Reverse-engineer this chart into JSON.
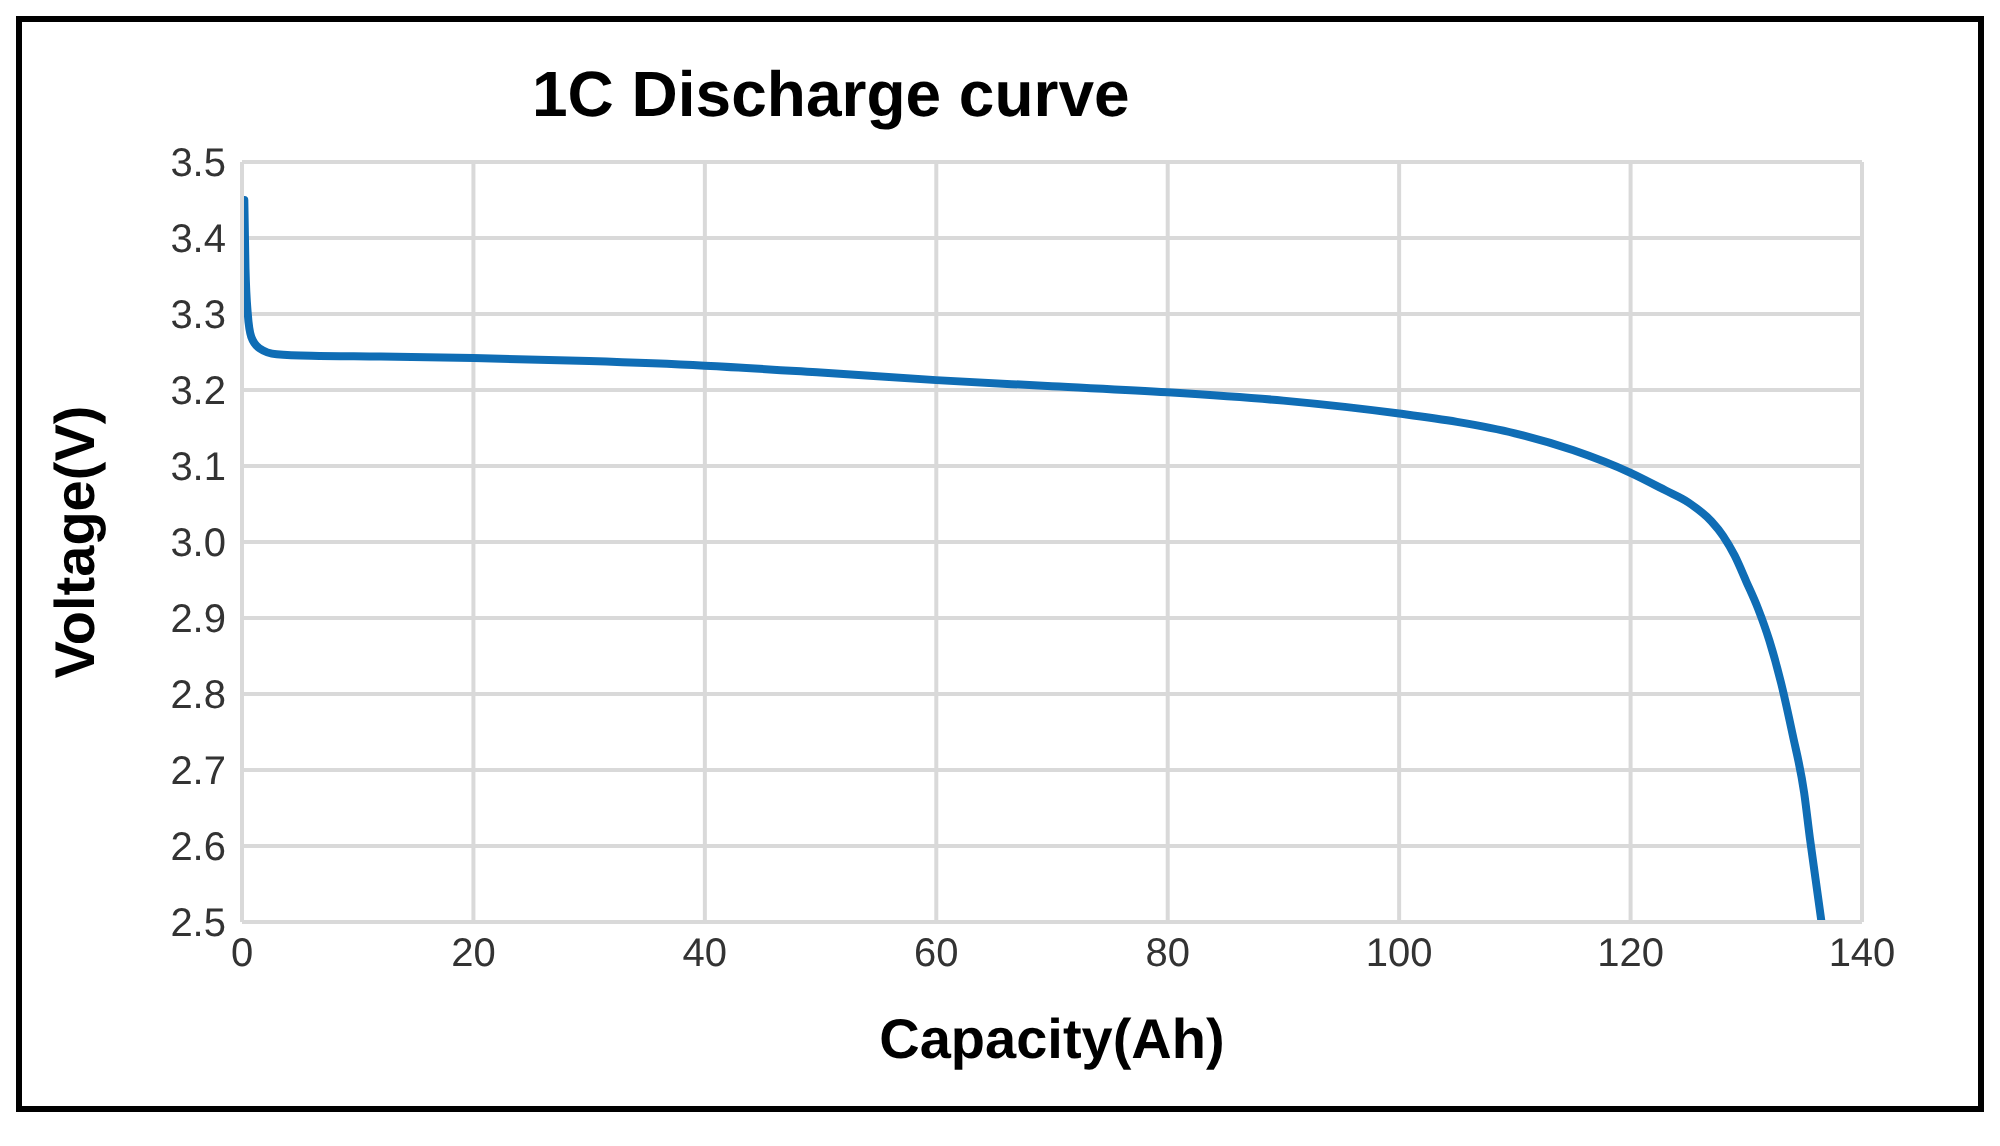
{
  "chart_data": {
    "type": "line",
    "title": "1C Discharge curve",
    "xlabel": "Capacity(Ah)",
    "ylabel": "Voltage(V)",
    "series": [
      {
        "color": "#0f6db5",
        "x": [
          0.2,
          0.3,
          0.5,
          0.8,
          1.5,
          3,
          6,
          12,
          20,
          30,
          40,
          50,
          60,
          70,
          80,
          90,
          100,
          105,
          110,
          115,
          120,
          123,
          125,
          127,
          128,
          129,
          130,
          131,
          132,
          133,
          134,
          135,
          135.5,
          136,
          136.5
        ],
        "values": [
          3.45,
          3.36,
          3.3,
          3.27,
          3.255,
          3.247,
          3.245,
          3.244,
          3.242,
          3.238,
          3.232,
          3.223,
          3.213,
          3.205,
          3.197,
          3.186,
          3.169,
          3.158,
          3.143,
          3.121,
          3.091,
          3.068,
          3.052,
          3.027,
          3.008,
          2.982,
          2.948,
          2.913,
          2.87,
          2.815,
          2.747,
          2.67,
          2.61,
          2.555,
          2.5
        ]
      }
    ],
    "xlim": [
      0,
      140
    ],
    "xticks": [
      0,
      20,
      40,
      60,
      80,
      100,
      120,
      140
    ],
    "ylim": [
      2.5,
      3.5
    ],
    "yticks": [
      2.5,
      2.6,
      2.7,
      2.8,
      2.9,
      {
        "value": 3.0,
        "label": "3.0"
      },
      3.1,
      3.2,
      3.3,
      3.4,
      3.5
    ],
    "grid": true,
    "legend": false,
    "marker": "none",
    "line_style": "solid"
  }
}
